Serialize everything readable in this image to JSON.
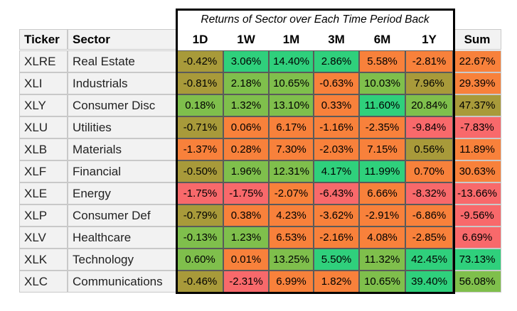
{
  "table": {
    "title": "Returns of Sector over Each Time Period Back",
    "headers": {
      "ticker": "Ticker",
      "sector": "Sector",
      "periods": [
        "1D",
        "1W",
        "1M",
        "3M",
        "6M",
        "1Y"
      ],
      "sum": "Sum"
    },
    "rows": [
      {
        "ticker": "XLRE",
        "sector": "Real Estate",
        "values": [
          "-0.42%",
          "3.06%",
          "14.40%",
          "2.86%",
          "5.58%",
          "-2.81%"
        ],
        "sum": "22.67%"
      },
      {
        "ticker": "XLI",
        "sector": "Industrials",
        "values": [
          "-0.81%",
          "2.18%",
          "10.65%",
          "-0.63%",
          "10.03%",
          "7.96%"
        ],
        "sum": "29.39%"
      },
      {
        "ticker": "XLY",
        "sector": "Consumer Disc",
        "values": [
          "0.18%",
          "1.32%",
          "13.10%",
          "0.33%",
          "11.60%",
          "20.84%"
        ],
        "sum": "47.37%"
      },
      {
        "ticker": "XLU",
        "sector": "Utilities",
        "values": [
          "-0.71%",
          "0.06%",
          "6.17%",
          "-1.16%",
          "-2.35%",
          "-9.84%"
        ],
        "sum": "-7.83%"
      },
      {
        "ticker": "XLB",
        "sector": "Materials",
        "values": [
          "-1.37%",
          "0.28%",
          "7.30%",
          "-2.03%",
          "7.15%",
          "0.56%"
        ],
        "sum": "11.89%"
      },
      {
        "ticker": "XLF",
        "sector": "Financial",
        "values": [
          "-0.50%",
          "1.96%",
          "12.31%",
          "4.17%",
          "11.99%",
          "0.70%"
        ],
        "sum": "30.63%"
      },
      {
        "ticker": "XLE",
        "sector": "Energy",
        "values": [
          "-1.75%",
          "-1.75%",
          "-2.07%",
          "-6.43%",
          "6.66%",
          "-8.32%"
        ],
        "sum": "-13.66%"
      },
      {
        "ticker": "XLP",
        "sector": "Consumer Def",
        "values": [
          "-0.79%",
          "0.38%",
          "4.23%",
          "-3.62%",
          "-2.91%",
          "-6.86%"
        ],
        "sum": "-9.56%"
      },
      {
        "ticker": "XLV",
        "sector": "Healthcare",
        "values": [
          "-0.13%",
          "1.23%",
          "6.53%",
          "-2.16%",
          "4.08%",
          "-2.85%"
        ],
        "sum": "6.69%"
      },
      {
        "ticker": "XLK",
        "sector": "Technology",
        "values": [
          "0.60%",
          "0.01%",
          "13.25%",
          "5.50%",
          "11.32%",
          "42.45%"
        ],
        "sum": "73.13%"
      },
      {
        "ticker": "XLC",
        "sector": "Communications",
        "values": [
          "-0.46%",
          "-2.31%",
          "6.99%",
          "1.82%",
          "10.65%",
          "39.40%"
        ],
        "sum": "56.08%"
      }
    ],
    "colors": {
      "red": "#f8696b",
      "orange": "#f8813b",
      "olive": "#a89a3a",
      "lime": "#7fbf4c",
      "green": "#2fd07c"
    }
  }
}
